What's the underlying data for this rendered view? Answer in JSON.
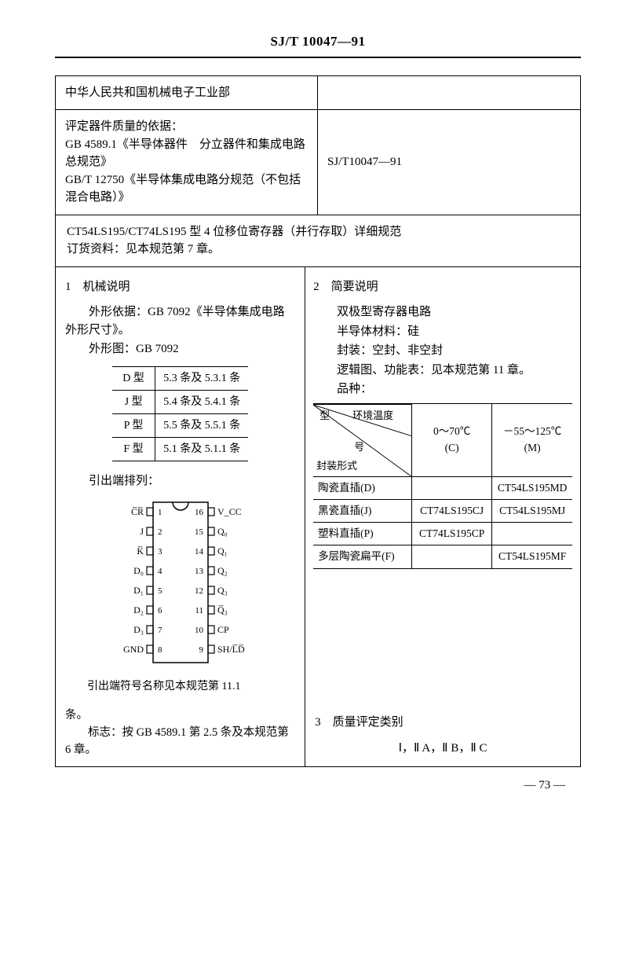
{
  "doc_id": "SJ/T 10047—91",
  "header_row1_left": "中华人民共和国机械电子工业部",
  "header_row2_left_line1": "评定器件质量的依据：",
  "header_row2_left_line2": "GB 4589.1《半导体器件　分立器件和集成电路总规范》",
  "header_row2_left_line3": "GB/T 12750《半导体集成电路分规范（不包括混合电路）》",
  "header_row2_right": "SJ/T10047—91",
  "full_row_line1": "CT54LS195/CT74LS195 型 4 位移位寄存器（并行存取）详细规范",
  "full_row_line2": "订货资料：见本规范第 7 章。",
  "sec1_title": "1　机械说明",
  "sec1_p1": "外形依据：GB 7092《半导体集成电路外形尺寸》。",
  "sec1_p2": "外形图：GB 7092",
  "type_table": {
    "rows": [
      [
        "D 型",
        "5.3 条及 5.3.1 条"
      ],
      [
        "J 型",
        "5.4 条及 5.4.1 条"
      ],
      [
        "P 型",
        "5.5 条及 5.5.1 条"
      ],
      [
        "F 型",
        "5.1 条及 5.1.1 条"
      ]
    ]
  },
  "sec1_p3": "引出端排列：",
  "chip": {
    "left_pins": [
      "C̅R̅",
      "J",
      "K̅",
      "D₀",
      "D₁",
      "D₂",
      "D₃",
      "GND"
    ],
    "right_pins": [
      "V_CC",
      "Q₀",
      "Q₁",
      "Q₂",
      "Q₃",
      "Q̅₃",
      "CP",
      "SH/L̅D̅"
    ],
    "left_nums": [
      "1",
      "2",
      "3",
      "4",
      "5",
      "6",
      "7",
      "8"
    ],
    "right_nums": [
      "16",
      "15",
      "14",
      "13",
      "12",
      "11",
      "10",
      "9"
    ]
  },
  "sec1_p4a": "引出端符号名称见本规范第 11.1",
  "sec1_p4b": "条。",
  "sec1_p5": "标志：按 GB 4589.1 第 2.5 条及本规范第 6 章。",
  "sec2_title": "2　简要说明",
  "sec2_lines": [
    "双极型寄存器电路",
    "半导体材料：硅",
    "封装：空封、非空封",
    "逻辑图、功能表：见本规范第 11 章。",
    "品种："
  ],
  "pkg_table": {
    "diag_labels": {
      "a": "型",
      "b": "环境温度",
      "c": "号",
      "d": "封装形式"
    },
    "col_heads": [
      {
        "t1": "0～70℃",
        "t2": "(C)"
      },
      {
        "t1": "－55～125℃",
        "t2": "(M)"
      }
    ],
    "rows": [
      {
        "label": "陶瓷直插(D)",
        "c": "",
        "m": "CT54LS195MD"
      },
      {
        "label": "黑瓷直插(J)",
        "c": "CT74LS195CJ",
        "m": "CT54LS195MJ"
      },
      {
        "label": "塑料直插(P)",
        "c": "CT74LS195CP",
        "m": ""
      },
      {
        "label": "多层陶瓷扁平(F)",
        "c": "",
        "m": "CT54LS195MF"
      }
    ]
  },
  "sec3_title": "3　质量评定类别",
  "sec3_body": "Ⅰ，Ⅱ A，Ⅱ B，Ⅱ C",
  "page_num": "— 73 —"
}
